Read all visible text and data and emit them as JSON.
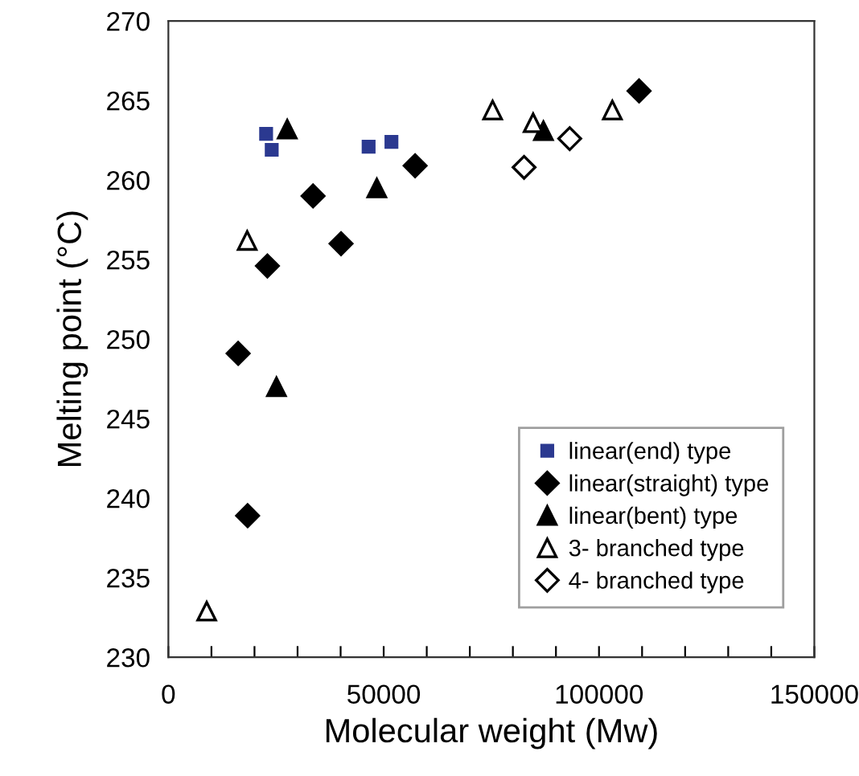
{
  "chart_data": {
    "type": "scatter",
    "xlabel": "Molecular weight (Mw)",
    "ylabel": "Melting point (°C)",
    "xlim": [
      0,
      150000
    ],
    "ylim": [
      230,
      270
    ],
    "xticks": [
      0,
      {
        "value": 10000,
        "label": null
      },
      {
        "value": 20000,
        "label": null
      },
      {
        "value": 30000,
        "label": null
      },
      {
        "value": 40000,
        "label": null
      },
      50000,
      {
        "value": 60000,
        "label": null
      },
      {
        "value": 70000,
        "label": null
      },
      {
        "value": 80000,
        "label": null
      },
      {
        "value": 90000,
        "label": null
      },
      100000,
      {
        "value": 110000,
        "label": null
      },
      {
        "value": 120000,
        "label": null
      },
      {
        "value": 130000,
        "label": null
      },
      {
        "value": 140000,
        "label": null
      },
      150000
    ],
    "yticks": [
      230,
      235,
      240,
      245,
      250,
      255,
      260,
      265,
      270
    ],
    "grid": false,
    "legend": "bottom right",
    "series": [
      {
        "name": "linear(end) type",
        "color": "#2b3990",
        "marker": "square",
        "x": [
          22700,
          24000,
          46500,
          51800
        ],
        "values": [
          262.9,
          261.9,
          262.1,
          262.4
        ]
      },
      {
        "name": "linear(straight) type",
        "color": "#000000",
        "marker": "diamond",
        "x": [
          16200,
          18400,
          23000,
          33600,
          40100,
          57300,
          109300
        ],
        "values": [
          249.1,
          238.9,
          254.6,
          259.0,
          256.0,
          260.9,
          265.6
        ]
      },
      {
        "name": "linear(bent) type",
        "color": "#000000",
        "marker": "triangle",
        "x": [
          25100,
          27600,
          48400,
          87100
        ],
        "values": [
          247.0,
          263.2,
          259.5,
          263.1
        ]
      },
      {
        "name": "3- branched type",
        "color": "#000000",
        "marker": "triangle",
        "x": [
          8900,
          18300,
          75300,
          84700,
          103100
        ],
        "values": [
          232.9,
          256.2,
          264.4,
          263.6,
          264.4
        ]
      },
      {
        "name": "4- branched type",
        "color": "#000000",
        "marker": "diamond",
        "x": [
          82600,
          93200
        ],
        "values": [
          260.8,
          262.6
        ]
      }
    ]
  }
}
